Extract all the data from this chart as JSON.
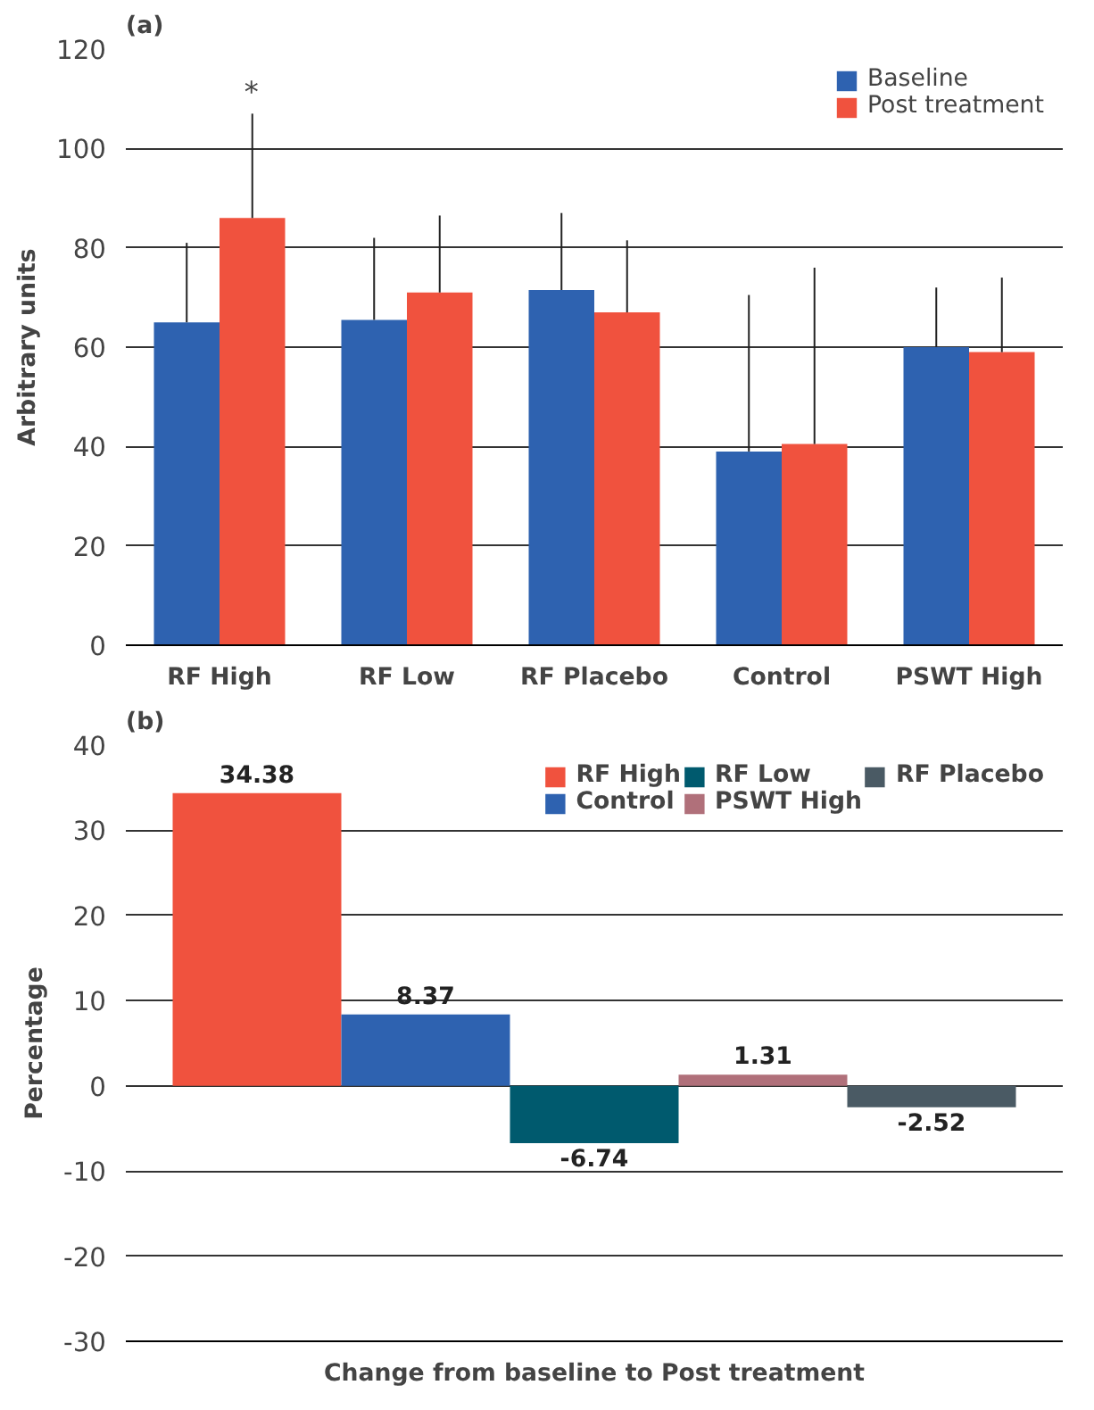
{
  "chart_data": [
    {
      "type": "bar",
      "title": "(a)",
      "ylabel": "Arbitrary units",
      "categories": [
        "RF High",
        "RF Low",
        "RF Placebo",
        "Control",
        "PSWT High"
      ],
      "series": [
        {
          "name": "Baseline",
          "color": "#2e62b0",
          "values": [
            65,
            65.5,
            71.5,
            39,
            60
          ],
          "errors": [
            [
              65,
              81
            ],
            [
              65.5,
              82
            ],
            [
              71.5,
              87
            ],
            [
              39,
              70.5
            ],
            [
              60,
              72
            ]
          ]
        },
        {
          "name": "Post treatment",
          "color": "#f0523e",
          "values": [
            86,
            71,
            67,
            40.5,
            59
          ],
          "errors": [
            [
              86,
              107
            ],
            [
              71,
              86.5
            ],
            [
              67,
              81.5
            ],
            [
              40.5,
              76
            ],
            [
              59,
              74
            ]
          ]
        }
      ],
      "ylim": [
        0,
        120
      ],
      "yticks": [
        0,
        20,
        40,
        60,
        80,
        100,
        120
      ],
      "grid": "y",
      "legend": "top right",
      "annotations": [
        "*"
      ]
    },
    {
      "type": "bar",
      "title": "(b)",
      "ylabel": "Percentage",
      "xlabel": "Change from baseline to Post treatment",
      "categories": [
        null
      ],
      "series": [
        {
          "name": "RF High",
          "color": "#f0523e",
          "values": [
            34.38
          ]
        },
        {
          "name": "Control",
          "color": "#2e62b0",
          "values": [
            8.37
          ]
        },
        {
          "name": "RF Low",
          "color": "#005a6e",
          "values": [
            -6.74
          ]
        },
        {
          "name": "PSWT High",
          "color": "#b0707a",
          "values": [
            1.31
          ]
        },
        {
          "name": "RF Placebo",
          "color": "#4a5a64",
          "values": [
            -2.52
          ]
        }
      ],
      "ylim": [
        -30,
        40
      ],
      "yticks": [
        -30,
        -20,
        -10,
        0,
        10,
        20,
        30,
        40
      ],
      "grid": "y",
      "legend": "top right",
      "data_labels": true,
      "tick_labels": "y"
    }
  ]
}
